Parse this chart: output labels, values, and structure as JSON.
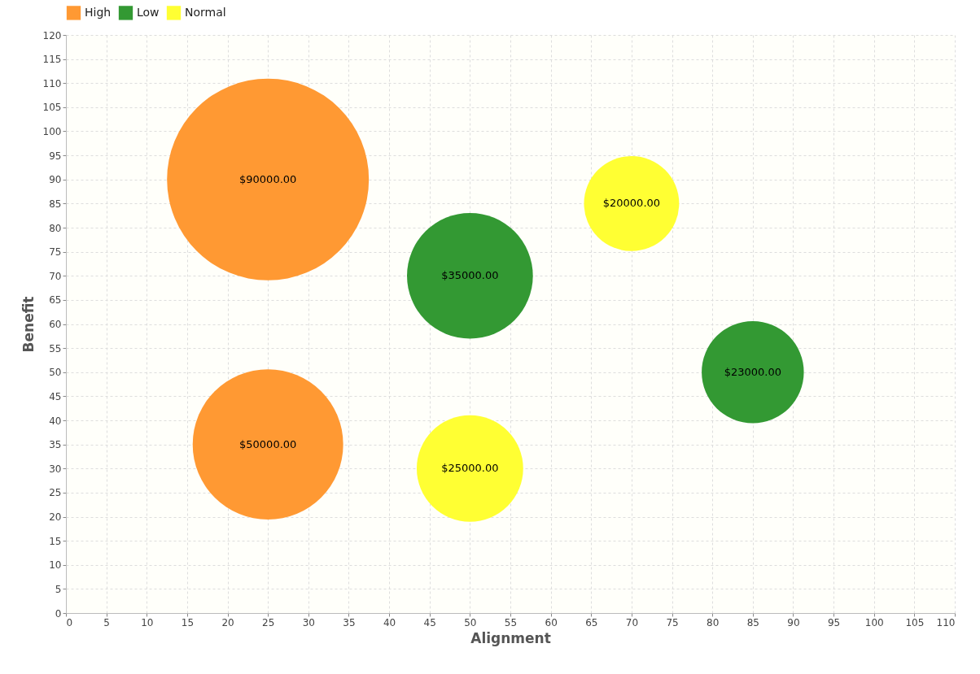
{
  "chart_data": {
    "type": "bubble",
    "xlabel": "Alignment",
    "ylabel": "Benefit",
    "xlim": [
      0,
      110
    ],
    "xticks": [
      0,
      5,
      10,
      15,
      20,
      25,
      30,
      35,
      40,
      45,
      50,
      55,
      60,
      65,
      70,
      75,
      80,
      85,
      90,
      95,
      100,
      105,
      110
    ],
    "ylim": [
      0,
      120
    ],
    "yticks": [
      0,
      5,
      10,
      15,
      20,
      25,
      30,
      35,
      40,
      45,
      50,
      55,
      60,
      65,
      70,
      75,
      80,
      85,
      90,
      95,
      100,
      105,
      110,
      115,
      120
    ],
    "grid": true,
    "legend": "top",
    "marker": "circle",
    "series": [
      {
        "name": "High",
        "color": "#ff9933",
        "x": [
          25,
          25
        ],
        "values": [
          90,
          35
        ],
        "sizes": [
          1,
          0.556
        ]
      },
      {
        "name": "Low",
        "color": "#339933",
        "x": [
          50,
          85
        ],
        "values": [
          70,
          50
        ],
        "sizes": [
          0.389,
          0.256
        ]
      },
      {
        "name": "Normal",
        "color": "#ffff33",
        "x": [
          70,
          50
        ],
        "values": [
          85,
          30
        ],
        "sizes": [
          0.222,
          0.278
        ]
      }
    ],
    "annotations": [
      {
        "text": "$90000.00",
        "x": 25,
        "y": 90
      },
      {
        "text": "$50000.00",
        "x": 25,
        "y": 35
      },
      {
        "text": "$35000.00",
        "x": 50,
        "y": 70
      },
      {
        "text": "$23000.00",
        "x": 85,
        "y": 50
      },
      {
        "text": "$20000.00",
        "x": 70,
        "y": 85
      },
      {
        "text": "$25000.00",
        "x": 50,
        "y": 30
      }
    ]
  }
}
